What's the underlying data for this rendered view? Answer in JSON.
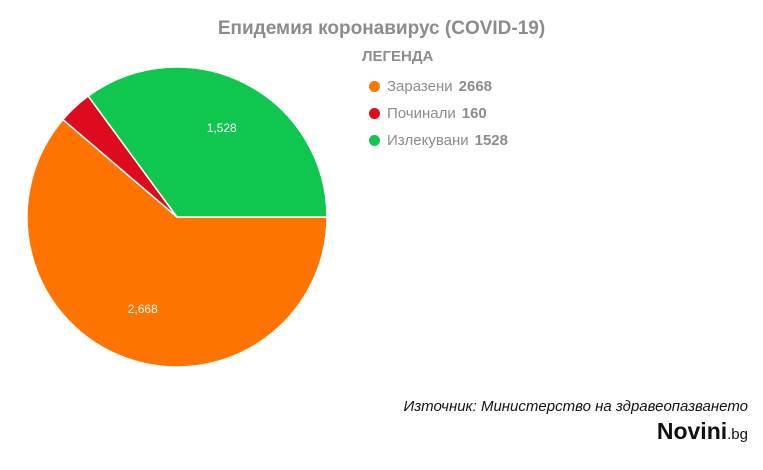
{
  "chart_data": {
    "type": "pie",
    "title": "Епидемия коронавирус (COVID-19)",
    "legend_title": "ЛЕГЕНДА",
    "legend_position": "top-right",
    "slices": [
      {
        "label": "Заразени",
        "value": 2668,
        "legend_value": "2668",
        "data_label": "2,668",
        "color": "#ff7300"
      },
      {
        "label": "Починали",
        "value": 160,
        "legend_value": "160",
        "data_label": "",
        "color": "#de0b1f"
      },
      {
        "label": "Излекувани",
        "value": 1528,
        "legend_value": "1528",
        "data_label": "1,528",
        "color": "#0fc64f"
      }
    ]
  },
  "footer": {
    "source": "Източник: Министерство на здравеопазването",
    "brand_main": "Novini",
    "brand_tld": ".bg"
  }
}
